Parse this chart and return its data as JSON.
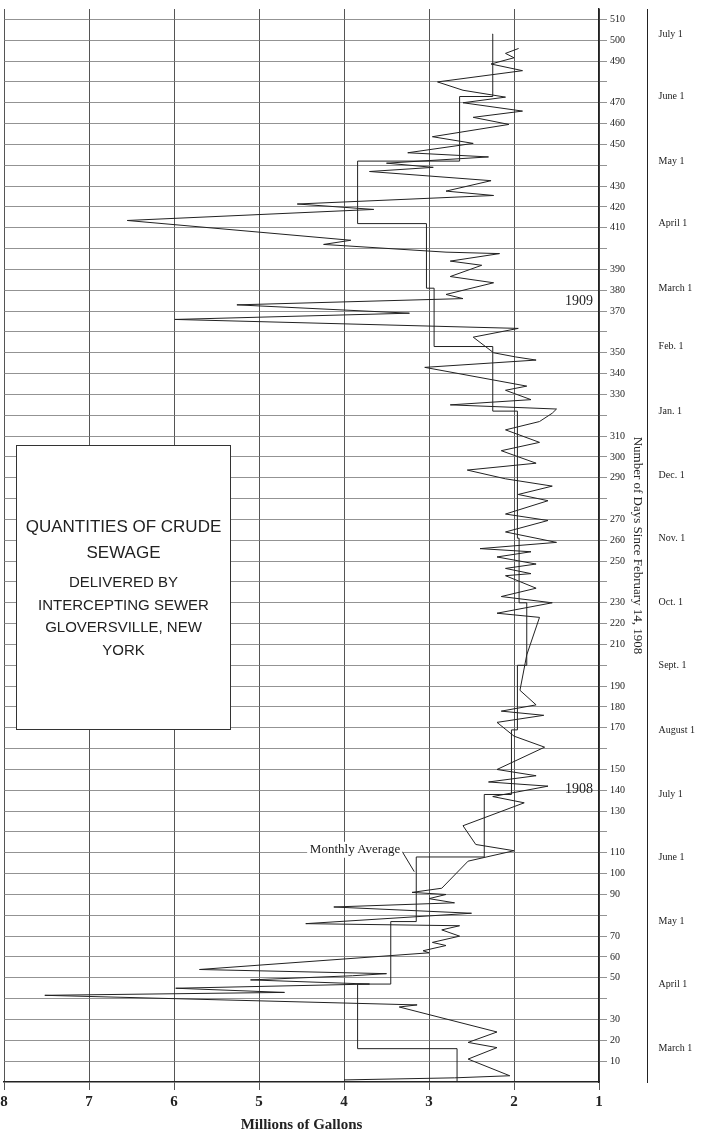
{
  "chart_data": {
    "type": "line",
    "title": "QUANTITIES OF CRUDE SEWAGE",
    "subtitle": "DELIVERED BY INTERCEPTING SEWER GLOVERSVILLE, NEW YORK",
    "xlabel": "Millions of Gallons",
    "ylabel": "Number of Days Since February 14, 1908",
    "xlim": [
      8,
      1
    ],
    "ylim": [
      0,
      515
    ],
    "y2lim": [
      "1908-02-14",
      "1909-07-13"
    ],
    "xticks": [
      1,
      2,
      3,
      4,
      5,
      6,
      7,
      8
    ],
    "yticks": [
      10,
      20,
      30,
      {
        "value": 40,
        "label": null
      },
      50,
      60,
      70,
      {
        "value": 80,
        "label": null
      },
      90,
      100,
      110,
      {
        "value": 120,
        "label": null
      },
      130,
      140,
      150,
      {
        "value": 160,
        "label": null
      },
      170,
      180,
      190,
      {
        "value": 200,
        "label": null
      },
      210,
      220,
      230,
      {
        "value": 240,
        "label": null
      },
      250,
      260,
      270,
      {
        "value": 280,
        "label": null
      },
      290,
      300,
      310,
      {
        "value": 320,
        "label": null
      },
      330,
      340,
      350,
      {
        "value": 360,
        "label": null
      },
      370,
      380,
      390,
      {
        "value": 400,
        "label": null
      },
      410,
      420,
      430,
      {
        "value": 440,
        "label": null
      },
      450,
      460,
      470,
      {
        "value": 480,
        "label": null
      },
      490,
      500,
      510
    ],
    "y2ticks": [
      {
        "value": "1908-03-01",
        "label": "March 1"
      },
      {
        "value": "1908-04-01",
        "label": "April 1"
      },
      {
        "value": "1908-05-01",
        "label": "May 1"
      },
      {
        "value": "1908-06-01",
        "label": "June 1"
      },
      {
        "value": "1908-07-01",
        "label": "July 1"
      },
      {
        "value": "1908-08-01",
        "label": "August 1"
      },
      {
        "value": "1908-09-01",
        "label": "Sept. 1"
      },
      {
        "value": "1908-10-01",
        "label": "Oct. 1"
      },
      {
        "value": "1908-11-01",
        "label": "Nov. 1"
      },
      {
        "value": "1908-12-01",
        "label": "Dec. 1"
      },
      {
        "value": "1909-01-01",
        "label": "Jan. 1"
      },
      {
        "value": "1909-02-01",
        "label": "Feb. 1"
      },
      {
        "value": "1909-03-01",
        "label": "March 1"
      },
      {
        "value": "1909-04-01",
        "label": "April 1"
      },
      {
        "value": "1909-05-01",
        "label": "May 1"
      },
      {
        "value": "1909-06-01",
        "label": "June 1"
      },
      {
        "value": "1909-07-01",
        "label": "July 1"
      }
    ],
    "grid": true,
    "marker": "none",
    "line_style": "solid",
    "series": [
      {
        "color": "#222222",
        "values": [
          1,
          2,
          3,
          11,
          16.5,
          19,
          24,
          36,
          37,
          41.6,
          43,
          45,
          47,
          49,
          51,
          52,
          54,
          62,
          63,
          65.5,
          67,
          70,
          73,
          75,
          76,
          81,
          84,
          86,
          88,
          90,
          91,
          93,
          106,
          111,
          114,
          123,
          134,
          137,
          142,
          144,
          147,
          150,
          160.7,
          166,
          172.6,
          176,
          178,
          181,
          188,
          205,
          223,
          225,
          230,
          233,
          237,
          243,
          244,
          246.5,
          248.6,
          252,
          254.5,
          256,
          259,
          264,
          269.5,
          272.6,
          279,
          282,
          286,
          289.5,
          293.7,
          297,
          303,
          307,
          313,
          317,
          321,
          323,
          325,
          327.5,
          332,
          334,
          343,
          346.5,
          348,
          350,
          357.5,
          361.7,
          366,
          369,
          373,
          376,
          378,
          383.6,
          386.6,
          392,
          394,
          397.6,
          398.3,
          402,
          404,
          413.5,
          418.8,
          421.4,
          425.5,
          427.6,
          432.6,
          437,
          439,
          441,
          444,
          446,
          450.5,
          453.7,
          459.6,
          463,
          466,
          470,
          472.7,
          476,
          480,
          485.4,
          488.6,
          491.6,
          493.7,
          496
        ],
        "x": [
          4.0,
          2.7,
          2.05,
          2.54,
          2.2,
          2.54,
          2.2,
          3.35,
          3.14,
          7.52,
          4.7,
          5.98,
          3.7,
          5.1,
          3.9,
          3.5,
          5.7,
          3.0,
          3.07,
          2.8,
          2.96,
          2.64,
          2.85,
          2.64,
          4.45,
          2.5,
          4.12,
          2.7,
          3.0,
          2.8,
          3.2,
          2.85,
          2.54,
          2.0,
          2.45,
          2.6,
          1.88,
          2.25,
          1.6,
          2.3,
          1.74,
          2.2,
          1.64,
          2.0,
          2.2,
          1.65,
          2.15,
          1.74,
          1.93,
          1.85,
          1.7,
          2.2,
          1.55,
          2.15,
          1.74,
          2.1,
          1.8,
          2.1,
          1.74,
          2.2,
          1.8,
          2.4,
          1.5,
          2.1,
          1.6,
          2.1,
          1.6,
          1.95,
          1.55,
          2.1,
          2.55,
          1.74,
          2.15,
          1.7,
          2.1,
          1.7,
          1.55,
          1.5,
          2.75,
          1.8,
          2.1,
          1.85,
          3.05,
          1.74,
          1.98,
          2.24,
          2.48,
          1.95,
          5.99,
          3.23,
          5.26,
          2.6,
          2.8,
          2.24,
          2.75,
          2.38,
          2.75,
          2.17,
          2.8,
          4.24,
          3.92,
          6.55,
          3.65,
          4.55,
          2.24,
          2.8,
          2.27,
          3.7,
          2.95,
          3.5,
          2.3,
          3.25,
          2.48,
          2.96,
          2.06,
          2.48,
          1.9,
          2.6,
          2.1,
          2.6,
          2.9,
          1.9,
          2.27,
          2.0,
          2.1,
          1.95
        ]
      },
      {
        "color": "#222222",
        "values": [
          0,
          16,
          16,
          47,
          47,
          77,
          77,
          108,
          108,
          138,
          138,
          169,
          169,
          200,
          200,
          230,
          230,
          261,
          261,
          322,
          322,
          353,
          353,
          381,
          381,
          412,
          412,
          442,
          442,
          473,
          473,
          503
        ],
        "x": [
          2.67,
          2.67,
          3.84,
          3.84,
          3.45,
          3.45,
          3.15,
          3.15,
          2.35,
          2.35,
          2.03,
          2.03,
          1.96,
          1.96,
          1.85,
          1.85,
          1.94,
          1.94,
          1.96,
          1.96,
          2.25,
          2.25,
          2.94,
          2.94,
          3.03,
          3.03,
          3.84,
          3.84,
          2.64,
          2.64,
          2.25,
          2.25
        ]
      }
    ],
    "annotations": [
      {
        "text": "Monthly Average",
        "x": 3.15,
        "y": 100
      },
      "1908",
      "1909"
    ]
  }
}
